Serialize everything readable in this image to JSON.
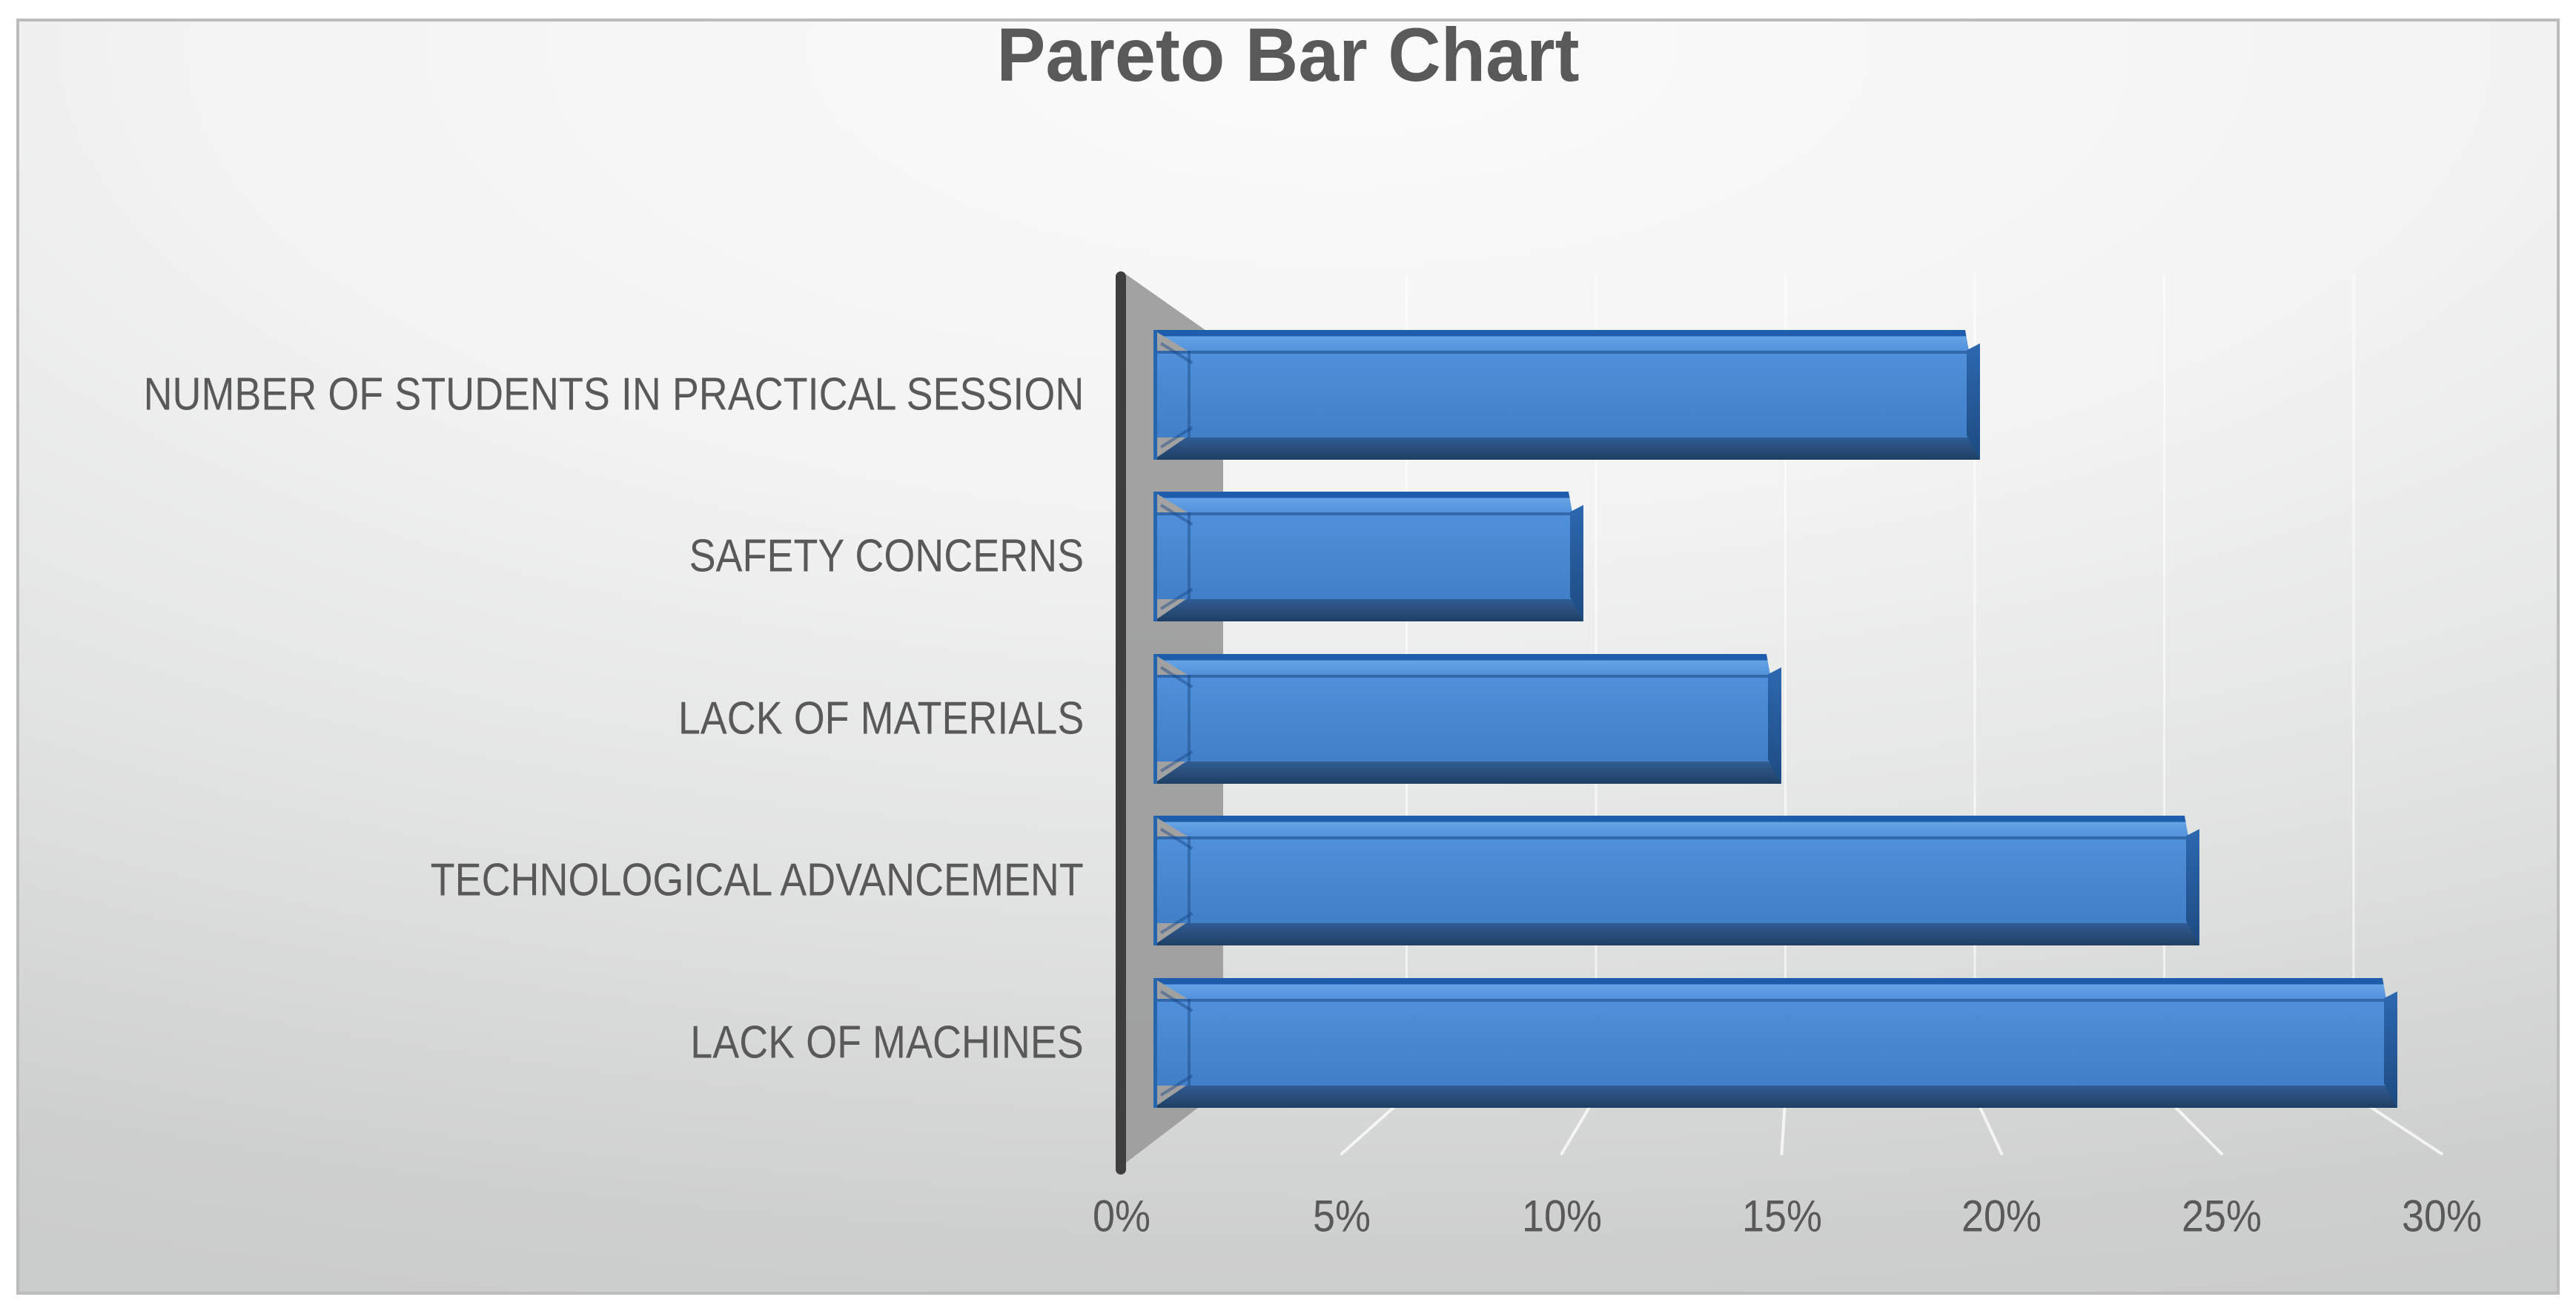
{
  "chart_data": {
    "type": "bar",
    "orientation": "horizontal",
    "style": "3d-bevel",
    "title": "Pareto Bar Chart",
    "categories": [
      "NUMBER OF STUDENTS IN PRACTICAL SESSION",
      "SAFETY CONCERNS",
      "LACK OF MATERIALS",
      "TECHNOLOGICAL ADVANCEMENT",
      "LACK OF MACHINES"
    ],
    "values": [
      19.5,
      10.5,
      15,
      24.5,
      29
    ],
    "unit": "%",
    "xlabel": "",
    "ylabel": "",
    "x_ticks": [
      "0%",
      "5%",
      "10%",
      "15%",
      "20%",
      "25%",
      "30%"
    ],
    "xlim": [
      0,
      30
    ],
    "grid": true,
    "legend": false,
    "bar_color": "#4583CB",
    "bar_border_color": "#1E5DAB",
    "bar_top_color": "#5E9CE0",
    "bar_bottom_color": "#27496F",
    "axis_line_color": "#3E3E3E",
    "wall_shadow_color": "#9D9D9D",
    "gridline_color": "#FFFFFF",
    "text_color": "#595959"
  }
}
